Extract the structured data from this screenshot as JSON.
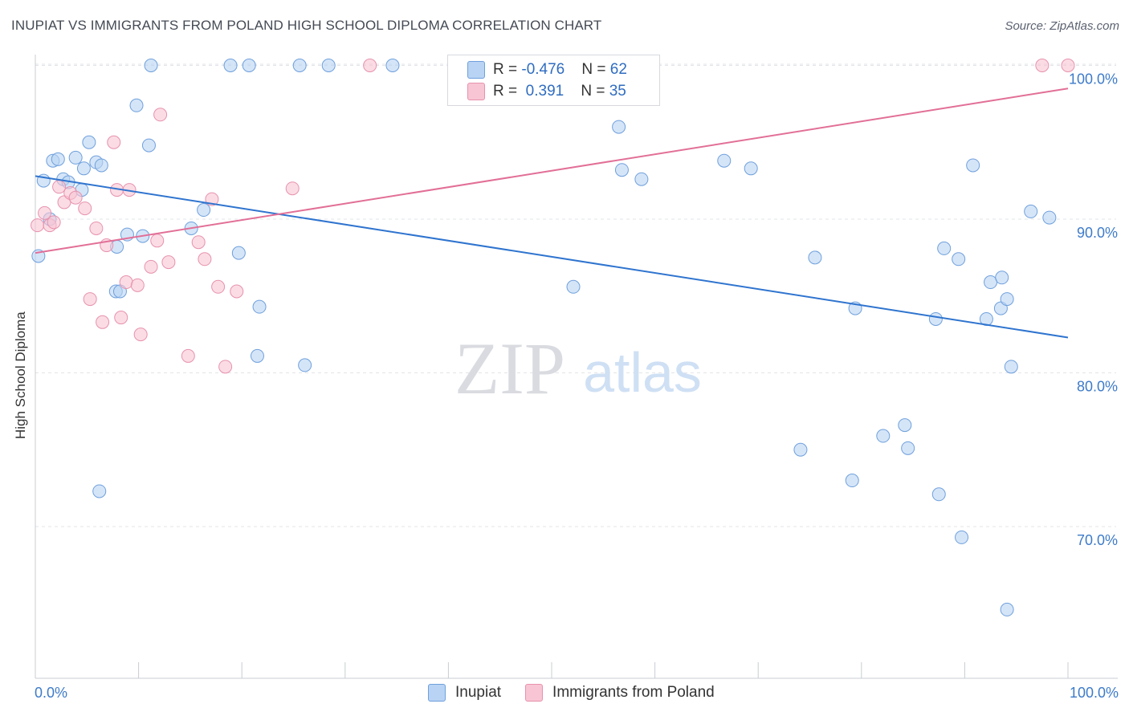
{
  "title": "INUPIAT VS IMMIGRANTS FROM POLAND HIGH SCHOOL DIPLOMA CORRELATION CHART",
  "source": "Source: ZipAtlas.com",
  "watermark": {
    "zip": "ZIP",
    "atlas": "atlas"
  },
  "colors": {
    "inupiat_fill": "#b9d3f4",
    "inupiat_stroke": "#6fa0dc",
    "inupiat_line": "#2f74cf",
    "poland_fill": "#f8c5d4",
    "poland_stroke": "#e792ad",
    "poland_line": "#e26f97",
    "axis_text": "#3d7bc9",
    "grid": "#e2e4e8"
  },
  "legend_top": [
    {
      "r_label": "R = ",
      "r_value": "-0.476",
      "n_label": "N = ",
      "n_value": "62"
    },
    {
      "r_label": "R = ",
      "r_value": " 0.391",
      "n_label": "N = ",
      "n_value": "35"
    }
  ],
  "chart_data": {
    "type": "scatter",
    "title": "INUPIAT VS IMMIGRANTS FROM POLAND HIGH SCHOOL DIPLOMA CORRELATION CHART",
    "xlabel": "",
    "ylabel": "High School Diploma",
    "xlim": [
      0,
      100
    ],
    "ylim": [
      60,
      101
    ],
    "x_tick_labels": [
      "0.0%",
      "100.0%"
    ],
    "y_tick_labels": [
      {
        "value": 100,
        "label": "100.0%"
      },
      {
        "value": 90,
        "label": "90.0%"
      },
      {
        "value": 80,
        "label": "80.0%"
      },
      {
        "value": 70,
        "label": "70.0%"
      }
    ],
    "grid": true,
    "legend_position": "bottom",
    "series": [
      {
        "name": "Inupiat",
        "points": [
          [
            0.3,
            87.6
          ],
          [
            0.8,
            92.5
          ],
          [
            1.4,
            90.0
          ],
          [
            1.7,
            93.8
          ],
          [
            2.2,
            93.9
          ],
          [
            2.7,
            92.6
          ],
          [
            3.2,
            92.4
          ],
          [
            3.9,
            94.0
          ],
          [
            4.5,
            91.9
          ],
          [
            4.7,
            93.3
          ],
          [
            5.2,
            95.0
          ],
          [
            5.9,
            93.7
          ],
          [
            6.4,
            93.5
          ],
          [
            6.2,
            72.3
          ],
          [
            7.8,
            85.3
          ],
          [
            7.9,
            88.2
          ],
          [
            8.2,
            85.3
          ],
          [
            8.9,
            89.0
          ],
          [
            9.8,
            97.4
          ],
          [
            10.4,
            88.9
          ],
          [
            11.0,
            94.8
          ],
          [
            11.2,
            100.0
          ],
          [
            15.1,
            89.4
          ],
          [
            16.3,
            90.6
          ],
          [
            18.9,
            100.0
          ],
          [
            19.7,
            87.8
          ],
          [
            20.7,
            100.0
          ],
          [
            21.5,
            81.1
          ],
          [
            21.7,
            84.3
          ],
          [
            25.6,
            100.0
          ],
          [
            26.1,
            80.5
          ],
          [
            28.4,
            100.0
          ],
          [
            34.6,
            100.0
          ],
          [
            47.3,
            100.0
          ],
          [
            52.1,
            85.6
          ],
          [
            56.5,
            96.0
          ],
          [
            56.8,
            93.2
          ],
          [
            58.7,
            92.6
          ],
          [
            66.7,
            93.8
          ],
          [
            69.3,
            93.3
          ],
          [
            74.1,
            75.0
          ],
          [
            75.5,
            87.5
          ],
          [
            79.4,
            84.2
          ],
          [
            79.1,
            73.0
          ],
          [
            82.1,
            75.9
          ],
          [
            84.2,
            76.6
          ],
          [
            84.5,
            75.1
          ],
          [
            87.2,
            83.5
          ],
          [
            88.0,
            88.1
          ],
          [
            87.5,
            72.1
          ],
          [
            89.4,
            87.4
          ],
          [
            89.7,
            69.3
          ],
          [
            90.8,
            93.5
          ],
          [
            92.1,
            83.5
          ],
          [
            92.5,
            85.9
          ],
          [
            93.5,
            84.2
          ],
          [
            93.6,
            86.2
          ],
          [
            94.1,
            84.8
          ],
          [
            94.5,
            80.4
          ],
          [
            96.4,
            90.5
          ],
          [
            98.2,
            90.1
          ],
          [
            94.1,
            64.6
          ]
        ]
      },
      {
        "name": "Immigrants from Poland",
        "points": [
          [
            0.2,
            89.6
          ],
          [
            0.9,
            90.4
          ],
          [
            1.4,
            89.6
          ],
          [
            1.8,
            89.8
          ],
          [
            2.3,
            92.1
          ],
          [
            2.8,
            91.1
          ],
          [
            3.4,
            91.7
          ],
          [
            3.9,
            91.4
          ],
          [
            4.8,
            90.7
          ],
          [
            5.3,
            84.8
          ],
          [
            5.9,
            89.4
          ],
          [
            6.5,
            83.3
          ],
          [
            6.9,
            88.3
          ],
          [
            7.6,
            95.0
          ],
          [
            7.9,
            91.9
          ],
          [
            8.3,
            83.6
          ],
          [
            8.8,
            85.9
          ],
          [
            9.1,
            91.9
          ],
          [
            9.9,
            85.7
          ],
          [
            10.2,
            82.5
          ],
          [
            11.2,
            86.9
          ],
          [
            11.8,
            88.6
          ],
          [
            12.1,
            96.8
          ],
          [
            12.9,
            87.2
          ],
          [
            14.8,
            81.1
          ],
          [
            15.8,
            88.5
          ],
          [
            16.4,
            87.4
          ],
          [
            17.1,
            91.3
          ],
          [
            17.7,
            85.6
          ],
          [
            18.4,
            80.4
          ],
          [
            19.5,
            85.3
          ],
          [
            24.9,
            92.0
          ],
          [
            32.4,
            100.0
          ],
          [
            100.0,
            100.0
          ],
          [
            97.5,
            100.0
          ]
        ]
      }
    ],
    "trend_lines": [
      {
        "series": "Inupiat",
        "from": [
          0,
          92.8
        ],
        "to": [
          100,
          82.3
        ]
      },
      {
        "series": "Immigrants from Poland",
        "from": [
          0,
          87.8
        ],
        "to": [
          100,
          98.5
        ]
      }
    ]
  },
  "bottom_legend": [
    {
      "label": "Inupiat"
    },
    {
      "label": "Immigrants from Poland"
    }
  ]
}
